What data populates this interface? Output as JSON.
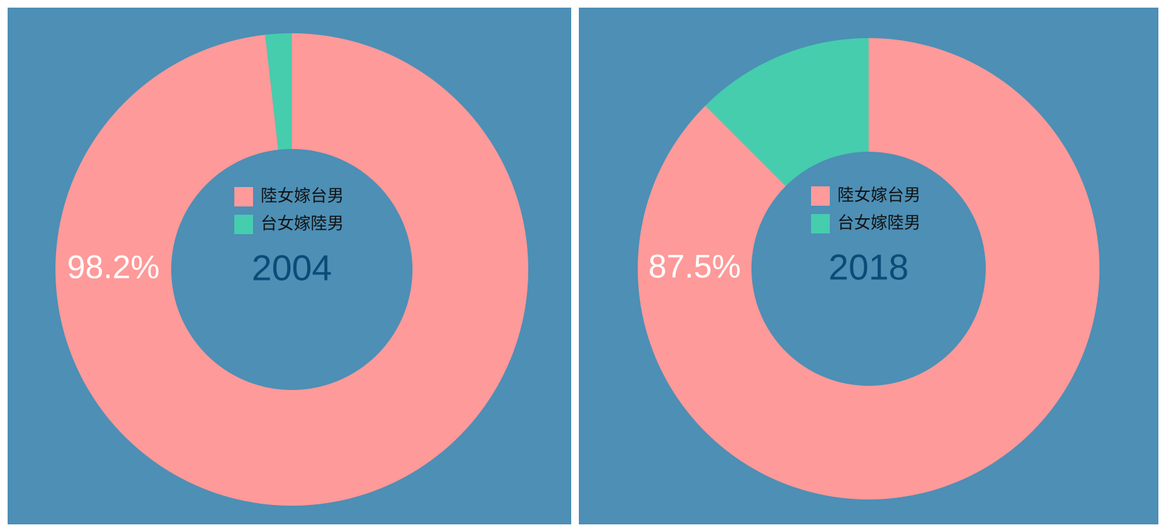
{
  "chart_data": [
    {
      "type": "donut",
      "title": "2004",
      "categories": [
        "陸女嫁台男",
        "台女嫁陸男"
      ],
      "values": [
        98.2,
        1.8
      ],
      "value_labels": [
        "98.2%",
        null
      ],
      "colors": [
        "#fe9a99",
        "#45cdae"
      ]
    },
    {
      "type": "donut",
      "title": "2018",
      "categories": [
        "陸女嫁台男",
        "台女嫁陸男"
      ],
      "values": [
        87.5,
        12.5
      ],
      "value_labels": [
        "87.5%",
        null
      ],
      "colors": [
        "#fe9a99",
        "#45cdae"
      ]
    }
  ]
}
